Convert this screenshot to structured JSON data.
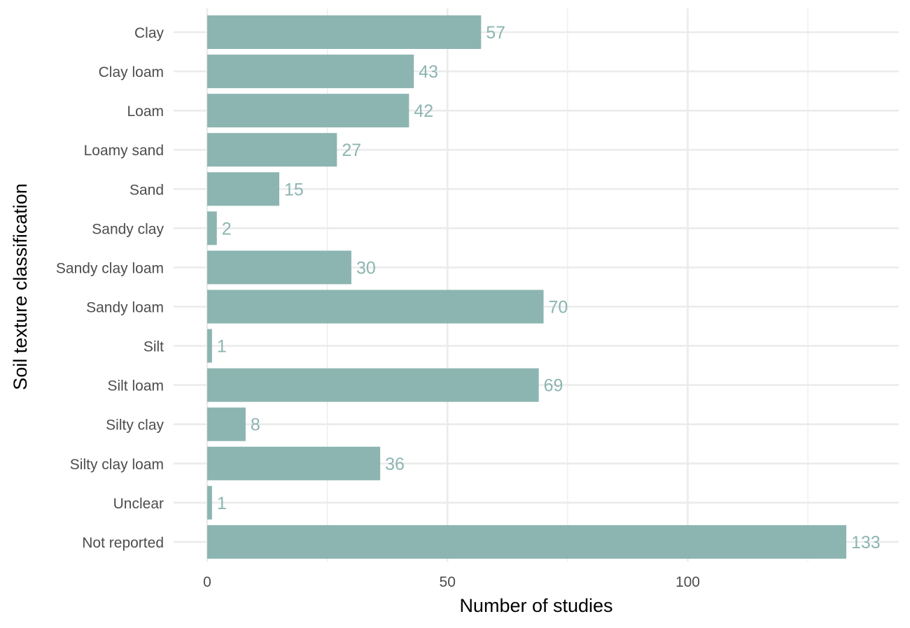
{
  "chart_data": {
    "type": "bar",
    "orientation": "horizontal",
    "categories": [
      "Clay",
      "Clay loam",
      "Loam",
      "Loamy sand",
      "Sand",
      "Sandy clay",
      "Sandy clay loam",
      "Sandy loam",
      "Silt",
      "Silt loam",
      "Silty clay",
      "Silty clay loam",
      "Unclear",
      "Not reported"
    ],
    "values": [
      57,
      43,
      42,
      27,
      15,
      2,
      30,
      70,
      1,
      69,
      8,
      36,
      1,
      133
    ],
    "xlabel": "Number of studies",
    "ylabel": "Soil texture classification",
    "xlim": [
      0,
      144
    ],
    "x_ticks": [
      0,
      50,
      100
    ],
    "x_minor_ticks": [
      25,
      75,
      125
    ],
    "grid": true,
    "data_labels": true,
    "colors": {
      "bar": "#8cb5b1",
      "label": "#8cb5b1",
      "grid": "#ebebeb"
    }
  }
}
